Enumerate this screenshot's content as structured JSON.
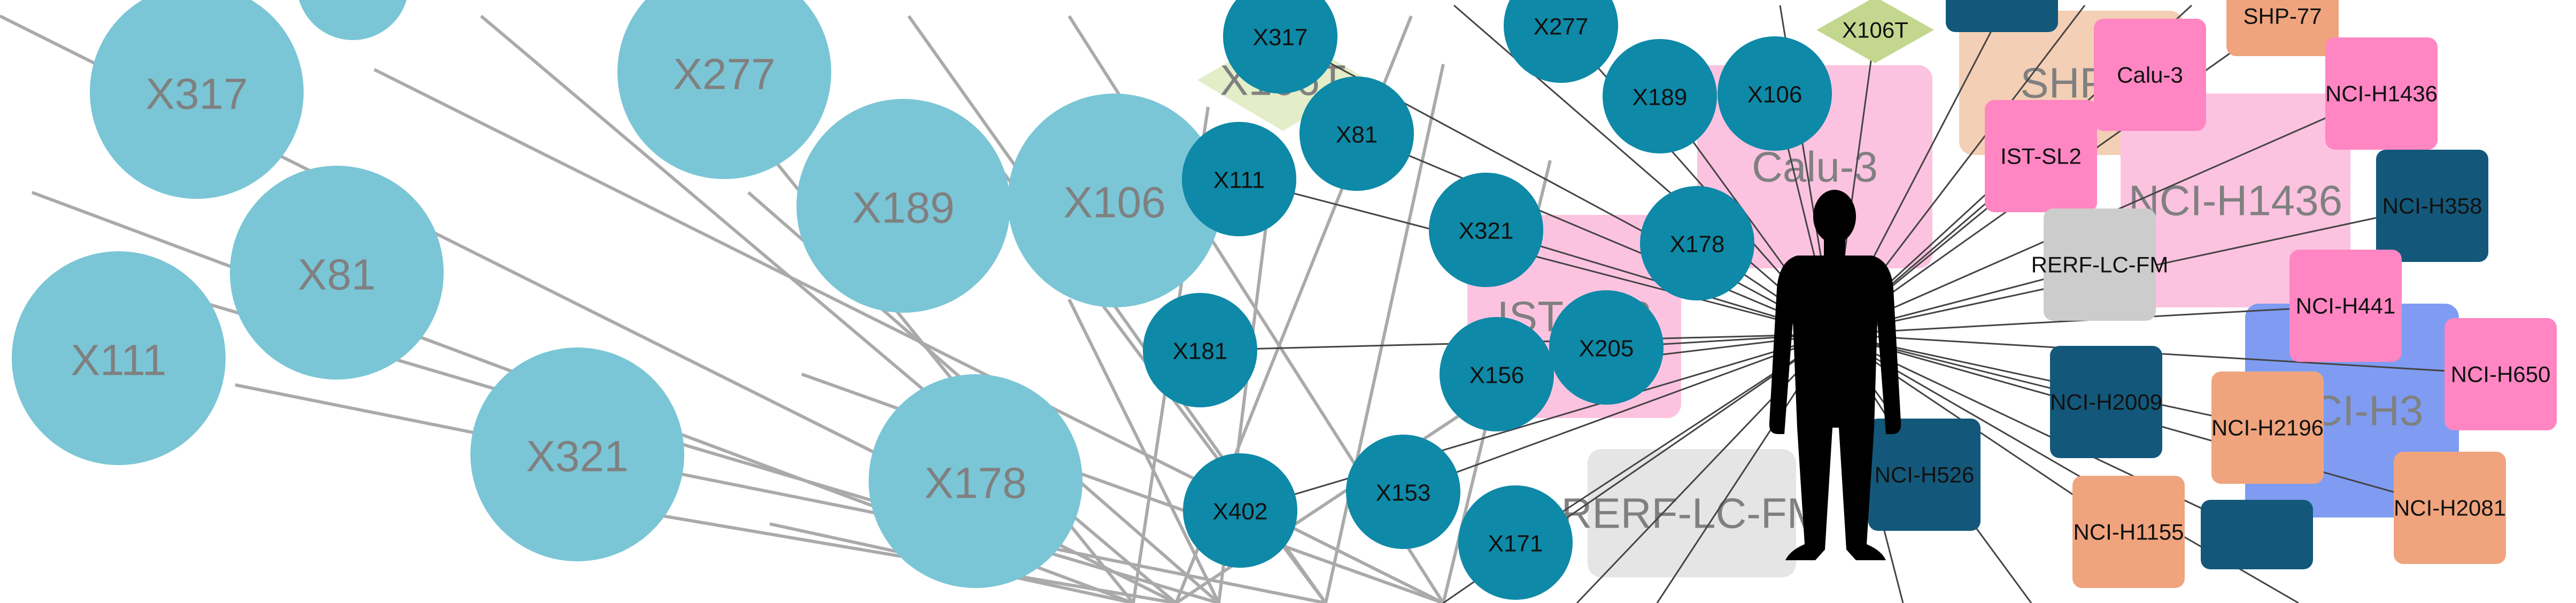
{
  "colors": {
    "background": "#ffffff",
    "edge_light": "#aaaaaa",
    "edge_dark": "#444444",
    "node_light": "#7ac6d6",
    "node_dark": "#0e89a7",
    "label_faded": "#808080",
    "label_dark": "#111111",
    "cell_pink": "#ff86c2",
    "cell_pink_faded": "#fcc3e0",
    "cell_orange": "#efa47e",
    "cell_orange_faded": "#f3cfb5",
    "cell_navy": "#13587a",
    "cell_blue_faded": "#7f9cf2",
    "cell_grey": "#cccccc",
    "cell_grey_faded": "#e5e5e5",
    "diamond_green": "#c4d78e",
    "diamond_green_faded": "#e3edc8",
    "person_silhouette": "#000000"
  },
  "large_nodes": [
    {
      "id": "n317",
      "label": "X317"
    },
    {
      "id": "n277",
      "label": "X277"
    },
    {
      "id": "n81",
      "label": "X81"
    },
    {
      "id": "n111",
      "label": "X111"
    },
    {
      "id": "n189",
      "label": "X189"
    },
    {
      "id": "n106",
      "label": "X106"
    },
    {
      "id": "n321",
      "label": "X321"
    },
    {
      "id": "n178",
      "label": "X178"
    }
  ],
  "faded_cell_lines": [
    {
      "id": "fd-x106t",
      "label": "X106T",
      "shape": "diamond"
    },
    {
      "id": "fd-calu3",
      "label": "Calu-3",
      "shape": "rect"
    },
    {
      "id": "fd-shp",
      "label": "SHP-",
      "shape": "rect"
    },
    {
      "id": "fd-h1436",
      "label": "NCI-H1436",
      "shape": "rect"
    },
    {
      "id": "fd-ist",
      "label": "IST-SL2",
      "shape": "rect"
    },
    {
      "id": "fd-rerf",
      "label": "RERF-LC-FM",
      "shape": "rect"
    },
    {
      "id": "fd-nci-h3",
      "label": "NCI-H3",
      "shape": "rect"
    }
  ],
  "small_nodes": [
    {
      "id": "s317",
      "label": "X317"
    },
    {
      "id": "s277",
      "label": "X277"
    },
    {
      "id": "s81",
      "label": "X81"
    },
    {
      "id": "s111",
      "label": "X111"
    },
    {
      "id": "s189",
      "label": "X189"
    },
    {
      "id": "s106",
      "label": "X106"
    },
    {
      "id": "s321",
      "label": "X321"
    },
    {
      "id": "s178",
      "label": "X178"
    },
    {
      "id": "s181",
      "label": "X181"
    },
    {
      "id": "s156",
      "label": "X156"
    },
    {
      "id": "s205",
      "label": "X205"
    },
    {
      "id": "s402",
      "label": "X402"
    },
    {
      "id": "s153",
      "label": "X153"
    },
    {
      "id": "s171",
      "label": "X171"
    }
  ],
  "cell_lines": [
    {
      "id": "c-x106t",
      "label": "X106T",
      "shape": "diamond",
      "kind": "green"
    },
    {
      "id": "c-shp77",
      "label": "SHP-77",
      "shape": "rect",
      "kind": "orange"
    },
    {
      "id": "c-calu3",
      "label": "Calu-3",
      "shape": "rect",
      "kind": "pink"
    },
    {
      "id": "c-h1436",
      "label": "NCI-H1436",
      "shape": "rect",
      "kind": "pink"
    },
    {
      "id": "c-istsl2",
      "label": "IST-SL2",
      "shape": "rect",
      "kind": "pink"
    },
    {
      "id": "c-h358",
      "label": "NCI-H358",
      "shape": "rect",
      "kind": "navy"
    },
    {
      "id": "c-rerf",
      "label": "RERF-LC-FM",
      "shape": "rect",
      "kind": "grey"
    },
    {
      "id": "c-h441",
      "label": "NCI-H441",
      "shape": "rect",
      "kind": "pink"
    },
    {
      "id": "c-h650",
      "label": "NCI-H650",
      "shape": "rect",
      "kind": "pink"
    },
    {
      "id": "c-h2009",
      "label": "NCI-H2009",
      "shape": "rect",
      "kind": "navy"
    },
    {
      "id": "c-h2196",
      "label": "NCI-H2196",
      "shape": "rect",
      "kind": "orange"
    },
    {
      "id": "c-h526",
      "label": "NCI-H526",
      "shape": "rect",
      "kind": "navy"
    },
    {
      "id": "c-h2081",
      "label": "NCI-H2081",
      "shape": "rect",
      "kind": "orange"
    },
    {
      "id": "c-h1155",
      "label": "NCI-H1155",
      "shape": "rect",
      "kind": "orange"
    },
    {
      "id": "c-navy-partial-top",
      "label": "",
      "shape": "rect",
      "kind": "navy"
    },
    {
      "id": "c-navy-partial-bottom",
      "label": "",
      "shape": "rect",
      "kind": "navy"
    }
  ],
  "person": {
    "name": "person-silhouette-icon"
  }
}
